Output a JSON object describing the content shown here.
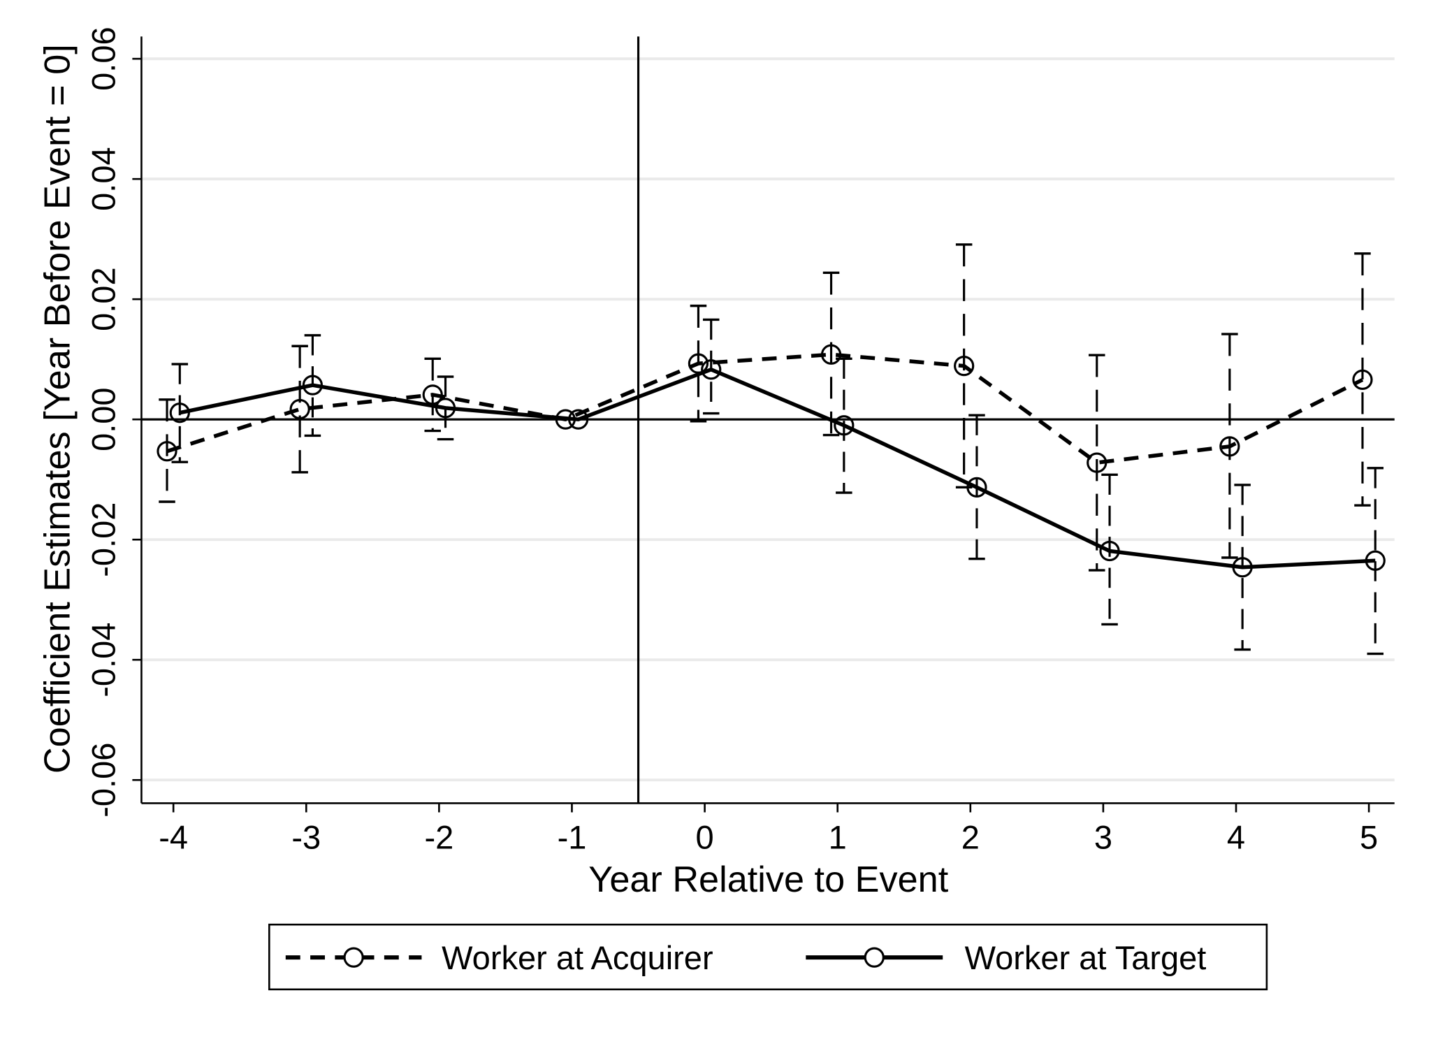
{
  "chart_data": {
    "type": "line",
    "title": "",
    "xlabel": "Year Relative to Event",
    "ylabel": "Coefficient Estimates [Year Before Event = 0]",
    "x_ticks": [
      "-4",
      "-3",
      "-2",
      "-1",
      "0",
      "1",
      "2",
      "3",
      "4",
      "5"
    ],
    "y_ticks": [
      "-0.06",
      "-0.04",
      "-0.02",
      "0.00",
      "0.02",
      "0.04",
      "0.06"
    ],
    "xlim": [
      -4.25,
      5.2
    ],
    "ylim": [
      -0.064,
      0.064
    ],
    "grid": true,
    "event_line_x": -0.5,
    "legend_position": "bottom",
    "series": [
      {
        "name": "Worker at Acquirer",
        "style": "dashed",
        "color": "#000000",
        "x": [
          -4,
          -3,
          -2,
          -1,
          0,
          1,
          2,
          3,
          4,
          5
        ],
        "y": [
          -0.0053,
          0.0017,
          0.0041,
          0.0,
          0.0093,
          0.0108,
          0.0089,
          -0.0072,
          -0.0045,
          0.0066
        ],
        "ci_low": [
          -0.0137,
          -0.0088,
          -0.0019,
          0.0,
          -0.0003,
          -0.0026,
          -0.0113,
          -0.0251,
          -0.023,
          -0.0143
        ],
        "ci_high": [
          0.0033,
          0.0122,
          0.0101,
          0.0,
          0.0189,
          0.0244,
          0.0291,
          0.0107,
          0.0142,
          0.0276
        ]
      },
      {
        "name": "Worker at Target",
        "style": "solid",
        "color": "#000000",
        "x": [
          -4,
          -3,
          -2,
          -1,
          0,
          1,
          2,
          3,
          4,
          5
        ],
        "y": [
          0.0011,
          0.0057,
          0.0019,
          0.0,
          0.0083,
          -0.001,
          -0.0113,
          -0.0219,
          -0.0246,
          -0.0235
        ],
        "ci_low": [
          -0.0071,
          -0.0027,
          -0.0033,
          0.0,
          0.001,
          -0.0122,
          -0.0232,
          -0.0341,
          -0.0383,
          -0.039
        ],
        "ci_high": [
          0.0092,
          0.014,
          0.0071,
          0.0,
          0.0166,
          0.0101,
          0.0007,
          -0.0092,
          -0.0109,
          -0.0081
        ]
      }
    ]
  }
}
